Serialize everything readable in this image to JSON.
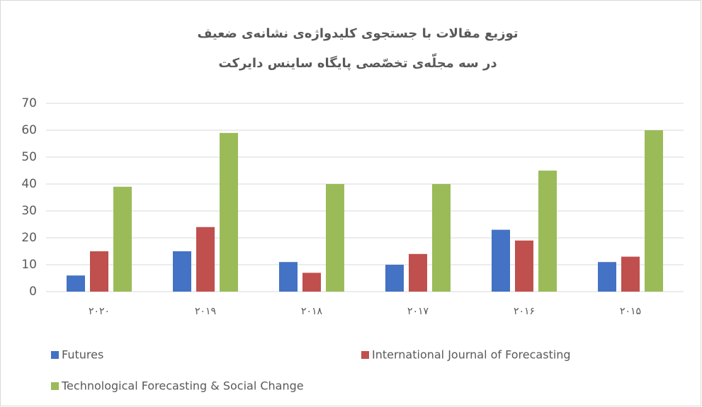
{
  "chart_data": {
    "type": "bar",
    "title": [
      "توزیع مقالات با جستجوی کلیدواژه‌ی نشانه‌ی ضعیف",
      "در سه مجلّه‌ی تخصّصی پایگاه ساینس دایرکت"
    ],
    "categories": [
      "۲۰۲۰",
      "۲۰۱۹",
      "۲۰۱۸",
      "۲۰۱۷",
      "۲۰۱۶",
      "۲۰۱۵"
    ],
    "series": [
      {
        "name": "Futures",
        "color": "#4472c4",
        "values": [
          6,
          15,
          11,
          10,
          23,
          11
        ]
      },
      {
        "name": "International Journal of Forecasting",
        "color": "#c0504d",
        "values": [
          15,
          24,
          7,
          14,
          19,
          13
        ]
      },
      {
        "name": "Technological Forecasting & Social Change",
        "color": "#9bbb59",
        "values": [
          39,
          59,
          40,
          40,
          45,
          60
        ]
      }
    ],
    "ylim": [
      0,
      70
    ],
    "yticks": [
      0,
      10,
      20,
      30,
      40,
      50,
      60,
      70
    ],
    "grid": true,
    "legend": "bottom"
  }
}
